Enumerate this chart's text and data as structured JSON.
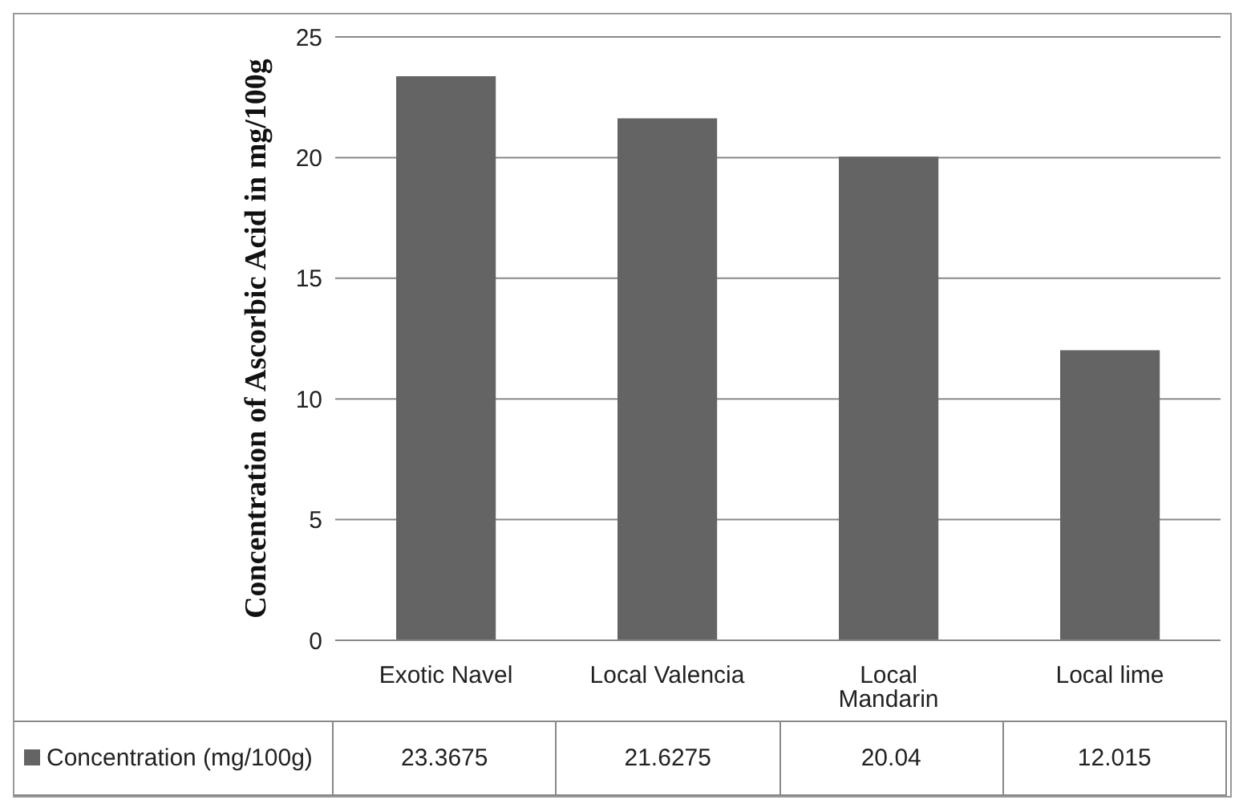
{
  "chart_data": {
    "type": "bar",
    "ylabel": "Concentration of Ascorbic Acid in mg/100g",
    "categories": [
      "Exotic Navel",
      "Local Valencia",
      "Local Mandarin",
      "Local lime"
    ],
    "series": [
      {
        "name": "Concentration (mg/100g)",
        "color": "#646464",
        "values": [
          23.3675,
          21.6275,
          20.04,
          12.015
        ]
      }
    ],
    "ylim": [
      0,
      25
    ],
    "yticks": [
      0,
      5,
      10,
      15,
      20,
      25
    ],
    "grid": "y",
    "data_labels": true,
    "legend": "bottom left"
  }
}
